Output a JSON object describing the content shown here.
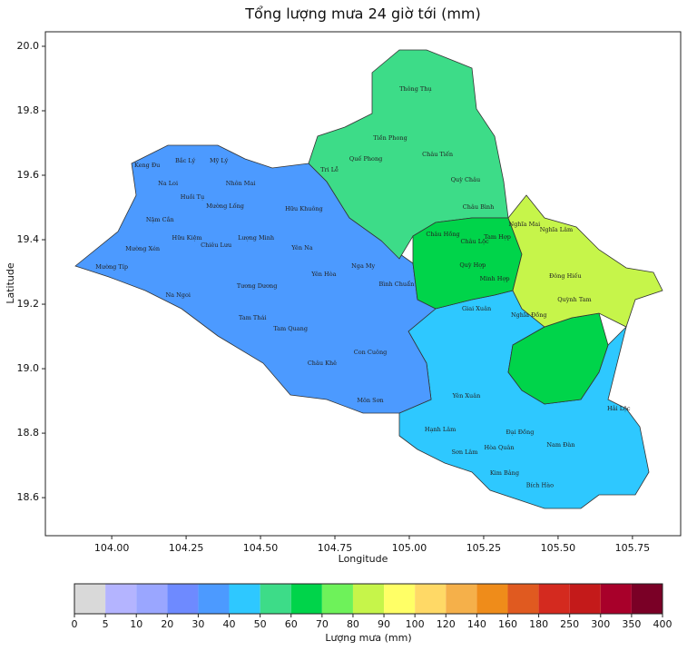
{
  "title": "Tổng lượng mưa 24 giờ tới (mm)",
  "x_label": "Longitude",
  "y_label": "Latitude",
  "xlim": [
    103.777,
    105.912
  ],
  "ylim": [
    18.482,
    20.045
  ],
  "xticks": [
    {
      "value": 104,
      "label": "104.00"
    },
    {
      "value": 104.25,
      "label": "104.25"
    },
    {
      "value": 104.5,
      "label": "104.50"
    },
    {
      "value": 104.75,
      "label": "104.75"
    },
    {
      "value": 105,
      "label": "105.00"
    },
    {
      "value": 105.25,
      "label": "105.25"
    },
    {
      "value": 105.5,
      "label": "105.50"
    },
    {
      "value": 105.75,
      "label": "105.75"
    }
  ],
  "yticks": [
    {
      "value": 18.6,
      "label": "18.6"
    },
    {
      "value": 18.8,
      "label": "18.8"
    },
    {
      "value": 19,
      "label": "19.0"
    },
    {
      "value": 19.2,
      "label": "19.2"
    },
    {
      "value": 19.4,
      "label": "19.4"
    },
    {
      "value": 19.6,
      "label": "19.6"
    },
    {
      "value": 19.8,
      "label": "19.8"
    },
    {
      "value": 20,
      "label": "20.0"
    }
  ],
  "rain_zones": [
    45,
    35,
    55,
    65,
    65,
    85
  ],
  "colorbar": {
    "label": "Lượng mưa (mm)",
    "bounds": [
      0,
      5,
      10,
      20,
      30,
      40,
      50,
      60,
      70,
      80,
      90,
      100,
      120,
      140,
      160,
      180,
      250,
      300,
      350,
      400
    ],
    "colors": [
      "#d9d9d9",
      "#b4b4ff",
      "#9aa6ff",
      "#6e8aff",
      "#4c9aff",
      "#2ec8ff",
      "#3ddc88",
      "#00d44a",
      "#6ef25a",
      "#c6f54a",
      "#ffff66",
      "#ffd966",
      "#f5b04a",
      "#ef8c1a",
      "#e05a20",
      "#d42a1f",
      "#c41a1a",
      "#a8002a",
      "#7a0026"
    ]
  },
  "communes": [
    {
      "name": "Thông Thụ",
      "lon": 105.021,
      "lat": 19.868
    },
    {
      "name": "Tiền Phong",
      "lon": 104.936,
      "lat": 19.715
    },
    {
      "name": "Quế Phong",
      "lon": 104.854,
      "lat": 19.651
    },
    {
      "name": "Châu Tiến",
      "lon": 105.095,
      "lat": 19.665
    },
    {
      "name": "Tri Lễ",
      "lon": 104.732,
      "lat": 19.617
    },
    {
      "name": "Quỳ Châu",
      "lon": 105.189,
      "lat": 19.586
    },
    {
      "name": "Châu Bình",
      "lon": 105.232,
      "lat": 19.501
    },
    {
      "name": "Keng Đu",
      "lon": 104.119,
      "lat": 19.631
    },
    {
      "name": "Bắc Lý",
      "lon": 104.247,
      "lat": 19.645
    },
    {
      "name": "Mỹ Lý",
      "lon": 104.36,
      "lat": 19.645
    },
    {
      "name": "Na Loi",
      "lon": 104.189,
      "lat": 19.575
    },
    {
      "name": "Huồi Tụ",
      "lon": 104.271,
      "lat": 19.532
    },
    {
      "name": "Nhôn Mai",
      "lon": 104.433,
      "lat": 19.575
    },
    {
      "name": "Nậm Cắn",
      "lon": 104.162,
      "lat": 19.462
    },
    {
      "name": "Mường Lống",
      "lon": 104.381,
      "lat": 19.504
    },
    {
      "name": "Hữu Khuông",
      "lon": 104.646,
      "lat": 19.496
    },
    {
      "name": "Hữu Kiệm",
      "lon": 104.253,
      "lat": 19.406
    },
    {
      "name": "Chiêu Lưu",
      "lon": 104.351,
      "lat": 19.383
    },
    {
      "name": "Lượng Minh",
      "lon": 104.485,
      "lat": 19.406
    },
    {
      "name": "Yên Na",
      "lon": 104.64,
      "lat": 19.375
    },
    {
      "name": "Mường Xén",
      "lon": 104.104,
      "lat": 19.372
    },
    {
      "name": "Mường Típ",
      "lon": 104.0,
      "lat": 19.315
    },
    {
      "name": "Yên Hòa",
      "lon": 104.713,
      "lat": 19.293
    },
    {
      "name": "Nga My",
      "lon": 104.845,
      "lat": 19.318
    },
    {
      "name": "Na Ngoi",
      "lon": 104.223,
      "lat": 19.228
    },
    {
      "name": "Tương Dương",
      "lon": 104.488,
      "lat": 19.256
    },
    {
      "name": "Bình Chuẩn",
      "lon": 104.957,
      "lat": 19.262
    },
    {
      "name": "Tam Thái",
      "lon": 104.473,
      "lat": 19.158
    },
    {
      "name": "Tam Quang",
      "lon": 104.601,
      "lat": 19.124
    },
    {
      "name": "Châu Khê",
      "lon": 104.707,
      "lat": 19.017
    },
    {
      "name": "Con Cuông",
      "lon": 104.869,
      "lat": 19.051
    },
    {
      "name": "Môn Sơn",
      "lon": 104.869,
      "lat": 18.901
    },
    {
      "name": "Châu Hồng",
      "lon": 105.113,
      "lat": 19.417
    },
    {
      "name": "Châu Lộc",
      "lon": 105.22,
      "lat": 19.394
    },
    {
      "name": "Tam Hợp",
      "lon": 105.296,
      "lat": 19.408
    },
    {
      "name": "Quỳ Hợp",
      "lon": 105.213,
      "lat": 19.321
    },
    {
      "name": "Minh Hợp",
      "lon": 105.287,
      "lat": 19.279
    },
    {
      "name": "Nghĩa Mai",
      "lon": 105.387,
      "lat": 19.448
    },
    {
      "name": "Nghĩa Lâm",
      "lon": 105.494,
      "lat": 19.431
    },
    {
      "name": "Đông Hiếu",
      "lon": 105.524,
      "lat": 19.287
    },
    {
      "name": "Quỳnh Tam",
      "lon": 105.555,
      "lat": 19.214
    },
    {
      "name": "Giai Xuân",
      "lon": 105.226,
      "lat": 19.186
    },
    {
      "name": "Nghĩa Đồng",
      "lon": 105.402,
      "lat": 19.166
    },
    {
      "name": "Yên Xuân",
      "lon": 105.192,
      "lat": 18.915
    },
    {
      "name": "Hạnh Lâm",
      "lon": 105.104,
      "lat": 18.811
    },
    {
      "name": "Sơn Lâm",
      "lon": 105.186,
      "lat": 18.741
    },
    {
      "name": "Đại Đồng",
      "lon": 105.372,
      "lat": 18.803
    },
    {
      "name": "Hòa Quân",
      "lon": 105.302,
      "lat": 18.755
    },
    {
      "name": "Kim Bảng",
      "lon": 105.32,
      "lat": 18.676
    },
    {
      "name": "Bích Hào",
      "lon": 105.439,
      "lat": 18.639
    },
    {
      "name": "Nam Đàn",
      "lon": 105.509,
      "lat": 18.763
    },
    {
      "name": "Hải Lộc",
      "lon": 105.704,
      "lat": 18.876
    }
  ]
}
